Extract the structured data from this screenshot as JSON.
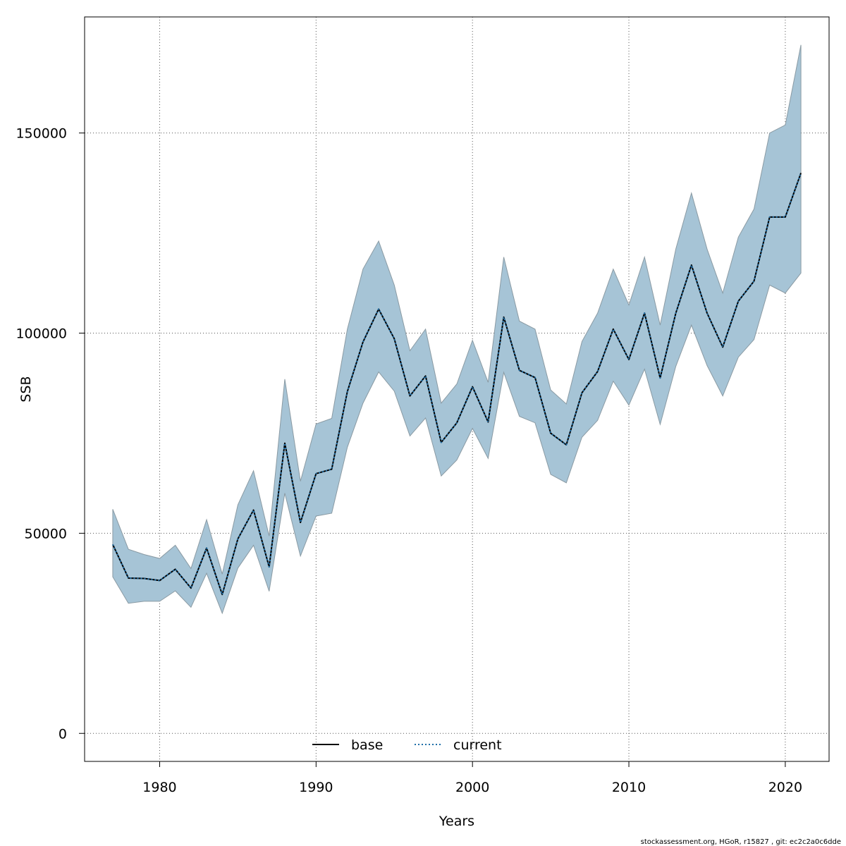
{
  "chart_data": {
    "type": "line",
    "xlabel": "Years",
    "ylabel": "SSB",
    "xlim": [
      1975.2,
      2022.8
    ],
    "ylim": [
      -7000,
      179000
    ],
    "xticks": [
      1980,
      1990,
      2000,
      2010,
      2020
    ],
    "yticks": [
      0,
      50000,
      100000,
      150000
    ],
    "grid": true,
    "legend_position": "bottom-center",
    "band_color": "#a6c4d6",
    "band_edge_color": "#8a9aa3",
    "x": [
      1977,
      1978,
      1979,
      1980,
      1981,
      1982,
      1983,
      1984,
      1985,
      1986,
      1987,
      1988,
      1989,
      1990,
      1991,
      1992,
      1993,
      1994,
      1995,
      1996,
      1997,
      1998,
      1999,
      2000,
      2001,
      2002,
      2003,
      2004,
      2005,
      2006,
      2007,
      2008,
      2009,
      2010,
      2011,
      2012,
      2013,
      2014,
      2015,
      2016,
      2017,
      2018,
      2019,
      2020,
      2021
    ],
    "band_upper": [
      56000,
      46000,
      44700,
      43700,
      47000,
      41200,
      53400,
      39800,
      57100,
      65600,
      49300,
      88500,
      63000,
      77300,
      78700,
      101000,
      116000,
      123000,
      112000,
      95600,
      101000,
      82500,
      87300,
      98200,
      87700,
      119000,
      103000,
      101000,
      85800,
      82300,
      97900,
      105000,
      116000,
      107000,
      119000,
      102000,
      121000,
      135000,
      121000,
      110000,
      124000,
      131000,
      150000,
      152000,
      172000
    ],
    "band_lower": [
      39100,
      32500,
      33000,
      33000,
      35600,
      31500,
      40000,
      30000,
      41300,
      47000,
      35500,
      60000,
      44300,
      54300,
      55000,
      71500,
      82500,
      90300,
      85500,
      74300,
      78800,
      64300,
      68300,
      76200,
      68700,
      90200,
      79200,
      77600,
      64700,
      62600,
      74000,
      78200,
      88000,
      82000,
      91000,
      77200,
      91700,
      102000,
      91900,
      84300,
      94000,
      98400,
      112000,
      110000,
      115000
    ],
    "series": [
      {
        "name": "base",
        "color": "#000000",
        "style": "solid",
        "values": [
          47200,
          38800,
          38700,
          38200,
          41000,
          36300,
          46300,
          34700,
          48600,
          55800,
          41600,
          72500,
          52700,
          64900,
          66000,
          85400,
          97800,
          106000,
          98600,
          84300,
          89300,
          72700,
          77600,
          86600,
          77800,
          104000,
          90700,
          88900,
          75000,
          72100,
          85100,
          90400,
          101000,
          93400,
          105000,
          88800,
          105000,
          117000,
          105000,
          96500,
          108000,
          113000,
          129000,
          129000,
          140000
        ]
      },
      {
        "name": "current",
        "color": "#1f6fa8",
        "style": "dotted",
        "values": [
          47200,
          38800,
          38700,
          38200,
          41000,
          36300,
          46300,
          34700,
          48600,
          55800,
          41600,
          72500,
          52700,
          64900,
          66000,
          85400,
          97800,
          106000,
          98600,
          84300,
          89300,
          72700,
          77600,
          86600,
          77800,
          104000,
          90700,
          88900,
          75000,
          72100,
          85100,
          90400,
          101000,
          93400,
          105000,
          88800,
          105000,
          117000,
          105000,
          96500,
          108000,
          113000,
          129000,
          129000,
          140000
        ]
      }
    ]
  },
  "footer": "stockassessment.org, HGoR, r15827 , git: ec2c2a0c6dde"
}
